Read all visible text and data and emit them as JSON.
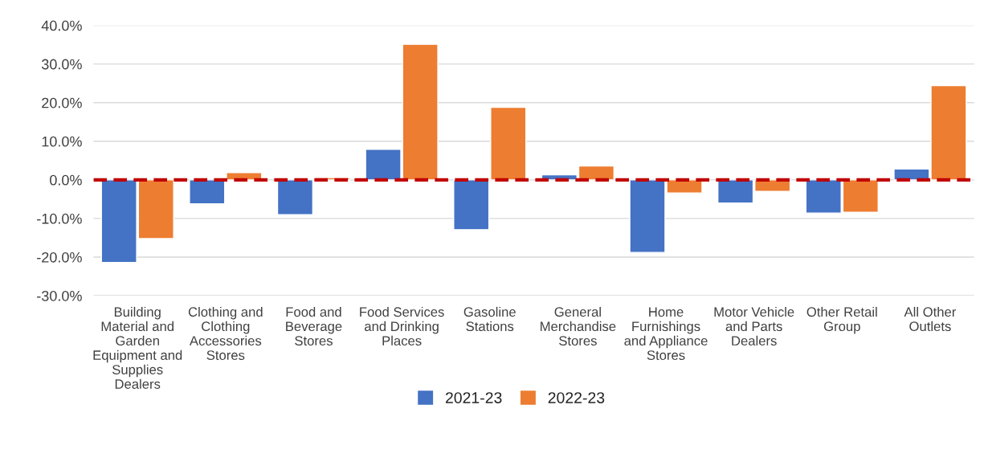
{
  "chart_data": {
    "type": "bar",
    "categories": [
      "Building Material and Garden Equipment and Supplies Dealers",
      "Clothing and Clothing Accessories Stores",
      "Food and Beverage Stores",
      "Food Services and Drinking Places",
      "Gasoline Stations",
      "General Merchandise Stores",
      "Home Furnishings and Appliance Stores",
      "Motor Vehicle and Parts Dealers",
      "Other Retail Group",
      "All Other Outlets"
    ],
    "series": [
      {
        "name": "2021-23",
        "color": "#4472c4",
        "values": [
          -21.4,
          -6.2,
          -9.0,
          7.9,
          -12.9,
          1.3,
          -18.8,
          -6.0,
          -8.6,
          2.8
        ]
      },
      {
        "name": "2022-23",
        "color": "#ed7d31",
        "values": [
          -15.2,
          1.9,
          0.6,
          35.1,
          18.8,
          3.6,
          -3.4,
          -3.0,
          -8.4,
          24.4
        ]
      }
    ],
    "ylim": [
      -30,
      40
    ],
    "yticks": [
      {
        "value": -30,
        "label": "-30.0%"
      },
      {
        "value": -20,
        "label": "-20.0%"
      },
      {
        "value": -10,
        "label": "-10.0%"
      },
      {
        "value": 0,
        "label": "0.0%"
      },
      {
        "value": 10,
        "label": "10.0%"
      },
      {
        "value": 20,
        "label": "20.0%"
      },
      {
        "value": 30,
        "label": "30.0%"
      },
      {
        "value": 40,
        "label": "40.0%"
      }
    ],
    "grid": "y",
    "legend": "bottom",
    "ref_lines": [
      {
        "axis": "y",
        "value": 0,
        "color": "#c00000",
        "line_style": "dashed"
      }
    ]
  }
}
